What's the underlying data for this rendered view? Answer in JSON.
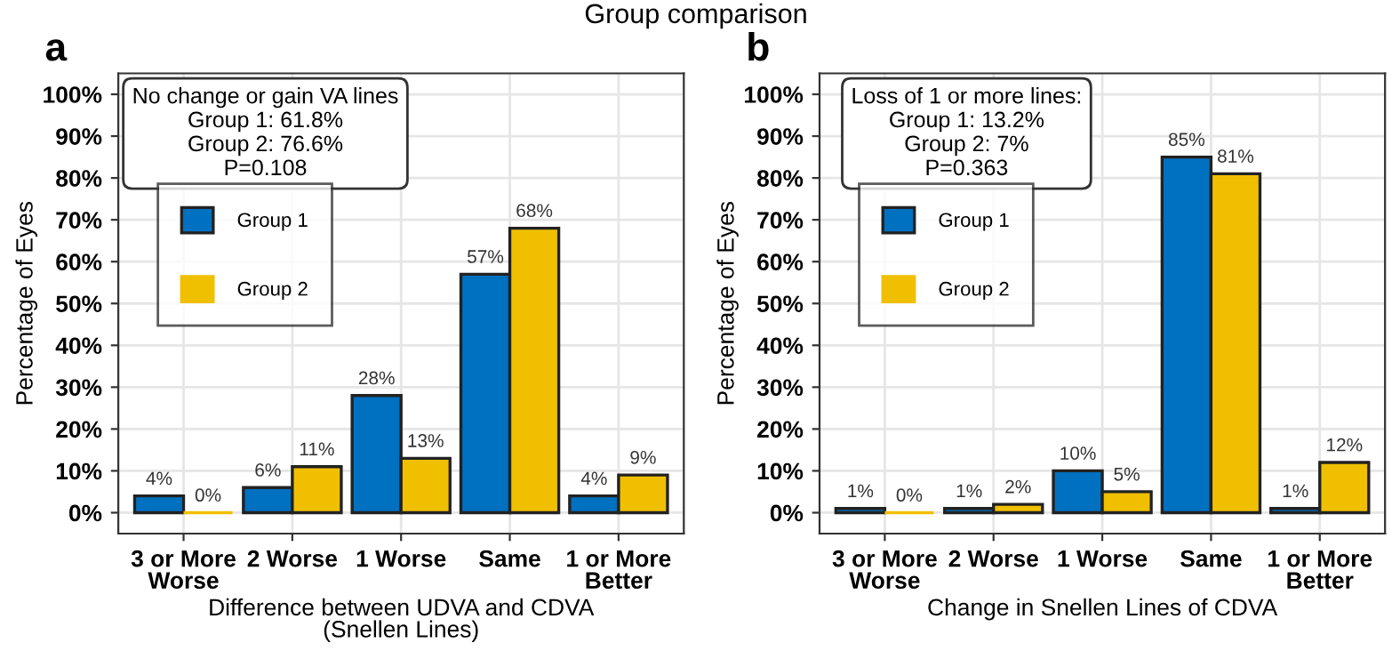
{
  "chart_data": [
    {
      "type": "bar",
      "title": "Group comparison",
      "xlabel": "Difference between UDVA and CDVA\n(Snellen Lines)",
      "ylabel": "Percentage of Eyes",
      "categories": [
        "3 or More\nWorse",
        "2 Worse",
        "1 Worse",
        "Same",
        "1 or More\nBetter"
      ],
      "series": [
        {
          "name": "Group 1",
          "color": "#0070c0",
          "values": [
            4,
            6,
            28,
            57,
            4
          ],
          "value_labels": [
            "4%",
            "6%",
            "28%",
            "57%",
            "4%"
          ]
        },
        {
          "name": "Group 2",
          "color": "#f0c000",
          "values": [
            0,
            11,
            13,
            68,
            9
          ],
          "value_labels": [
            "0%",
            "11%",
            "13%",
            "68%",
            "9%"
          ]
        }
      ],
      "ylim": [
        -5,
        105
      ],
      "yticks": [
        {
          "value": 0,
          "label": "0%"
        },
        {
          "value": 10,
          "label": "10%"
        },
        {
          "value": 20,
          "label": "20%"
        },
        {
          "value": 30,
          "label": "30%"
        },
        {
          "value": 40,
          "label": "40%"
        },
        {
          "value": 50,
          "label": "50%"
        },
        {
          "value": 60,
          "label": "60%"
        },
        {
          "value": 70,
          "label": "70%"
        },
        {
          "value": 80,
          "label": "80%"
        },
        {
          "value": 90,
          "label": "90%"
        },
        {
          "value": 100,
          "label": "100%"
        }
      ],
      "grid": true,
      "legend": "top left",
      "annotations": [
        "a",
        "No change or gain VA lines\nGroup 1: 61.8%\nGroup 2: 76.6%\nP=0.108"
      ]
    },
    {
      "type": "bar",
      "xlabel": "Change in Snellen Lines of CDVA",
      "ylabel": "Percentage of Eyes",
      "categories": [
        "3 or More\nWorse",
        "2 Worse",
        "1 Worse",
        "Same",
        "1 or More\nBetter"
      ],
      "series": [
        {
          "name": "Group 1",
          "color": "#0070c0",
          "values": [
            1,
            1,
            10,
            85,
            1
          ],
          "value_labels": [
            "1%",
            "1%",
            "10%",
            "85%",
            "1%"
          ]
        },
        {
          "name": "Group 2",
          "color": "#f0c000",
          "values": [
            0,
            2,
            5,
            81,
            12
          ],
          "value_labels": [
            "0%",
            "2%",
            "5%",
            "81%",
            "12%"
          ]
        }
      ],
      "ylim": [
        -5,
        105
      ],
      "yticks": [
        {
          "value": 0,
          "label": "0%"
        },
        {
          "value": 10,
          "label": "10%"
        },
        {
          "value": 20,
          "label": "20%"
        },
        {
          "value": 30,
          "label": "30%"
        },
        {
          "value": 40,
          "label": "40%"
        },
        {
          "value": 50,
          "label": "50%"
        },
        {
          "value": 60,
          "label": "60%"
        },
        {
          "value": 70,
          "label": "70%"
        },
        {
          "value": 80,
          "label": "80%"
        },
        {
          "value": 90,
          "label": "90%"
        },
        {
          "value": 100,
          "label": "100%"
        }
      ],
      "grid": true,
      "legend": "top left",
      "annotations": [
        "b",
        "Loss of 1 or more lines:\nGroup 1: 13.2%\nGroup 2: 7%\nP=0.363"
      ]
    }
  ]
}
